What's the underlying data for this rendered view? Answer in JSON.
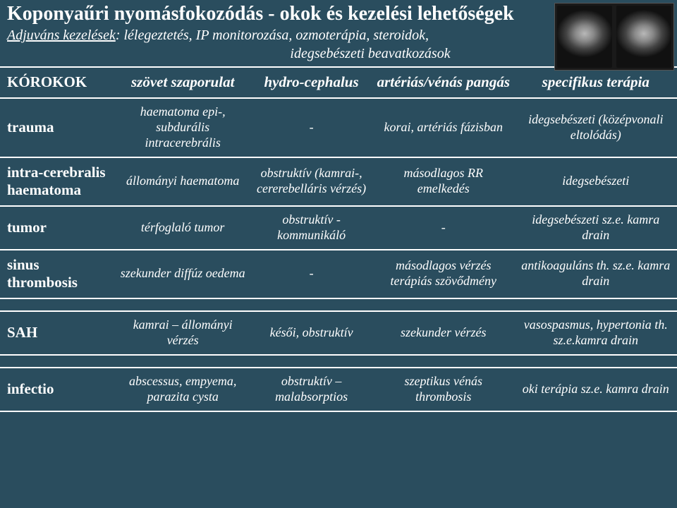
{
  "header": {
    "title": "Koponyaűri nyomásfokozódás  -   okok és kezelési lehetőségek",
    "subtitle_lead": "Adjuváns kezelések",
    "subtitle_rest": ": lélegeztetés, IP monitorozása, ozmoterápia, steroidok,",
    "subtitle_line2": "idegsebészeti beavatkozások"
  },
  "table": {
    "columns": [
      "KÓROKOK",
      "szövet szaporulat",
      "hydro-cephalus",
      "artériás/vénás pangás",
      "specifikus terápia"
    ],
    "rows": [
      {
        "label": "trauma",
        "cells": [
          "haematoma epi-, subdurális intracerebrális",
          "-",
          "korai, artériás fázisban",
          "idegsebészeti (középvonali eltolódás)"
        ]
      },
      {
        "label": "intra-cerebralis haematoma",
        "cells": [
          "állományi haematoma",
          "obstruktív (kamrai-, cererebelláris vérzés)",
          "másodlagos RR emelkedés",
          "idegsebészeti"
        ]
      },
      {
        "label": "tumor",
        "cells": [
          "térfoglaló tumor",
          "obstruktív - kommunikáló",
          "-",
          "idegsebészeti sz.e. kamra drain"
        ]
      },
      {
        "label": "sinus thrombosis",
        "cells": [
          "szekunder diffúz oedema",
          "-",
          "másodlagos vérzés terápiás szövődmény",
          "antikoaguláns th. sz.e. kamra drain"
        ]
      },
      {
        "label": "SAH",
        "cells": [
          "kamrai – állományi vérzés",
          "késői, obstruktív",
          "szekunder vérzés",
          "vasospasmus, hypertonia th. sz.e.kamra drain"
        ]
      },
      {
        "label": "infectio",
        "cells": [
          "abscessus, empyema, parazita cysta",
          "obstruktív – malabsorptios",
          "szeptikus vénás thrombosis",
          "oki terápia sz.e. kamra drain"
        ]
      }
    ]
  },
  "style": {
    "background": "#2a4d5e",
    "text_color": "#ffffff",
    "border_color": "#ffffff",
    "title_fontsize": 28,
    "header_fontsize": 21,
    "cell_fontsize": 18
  }
}
